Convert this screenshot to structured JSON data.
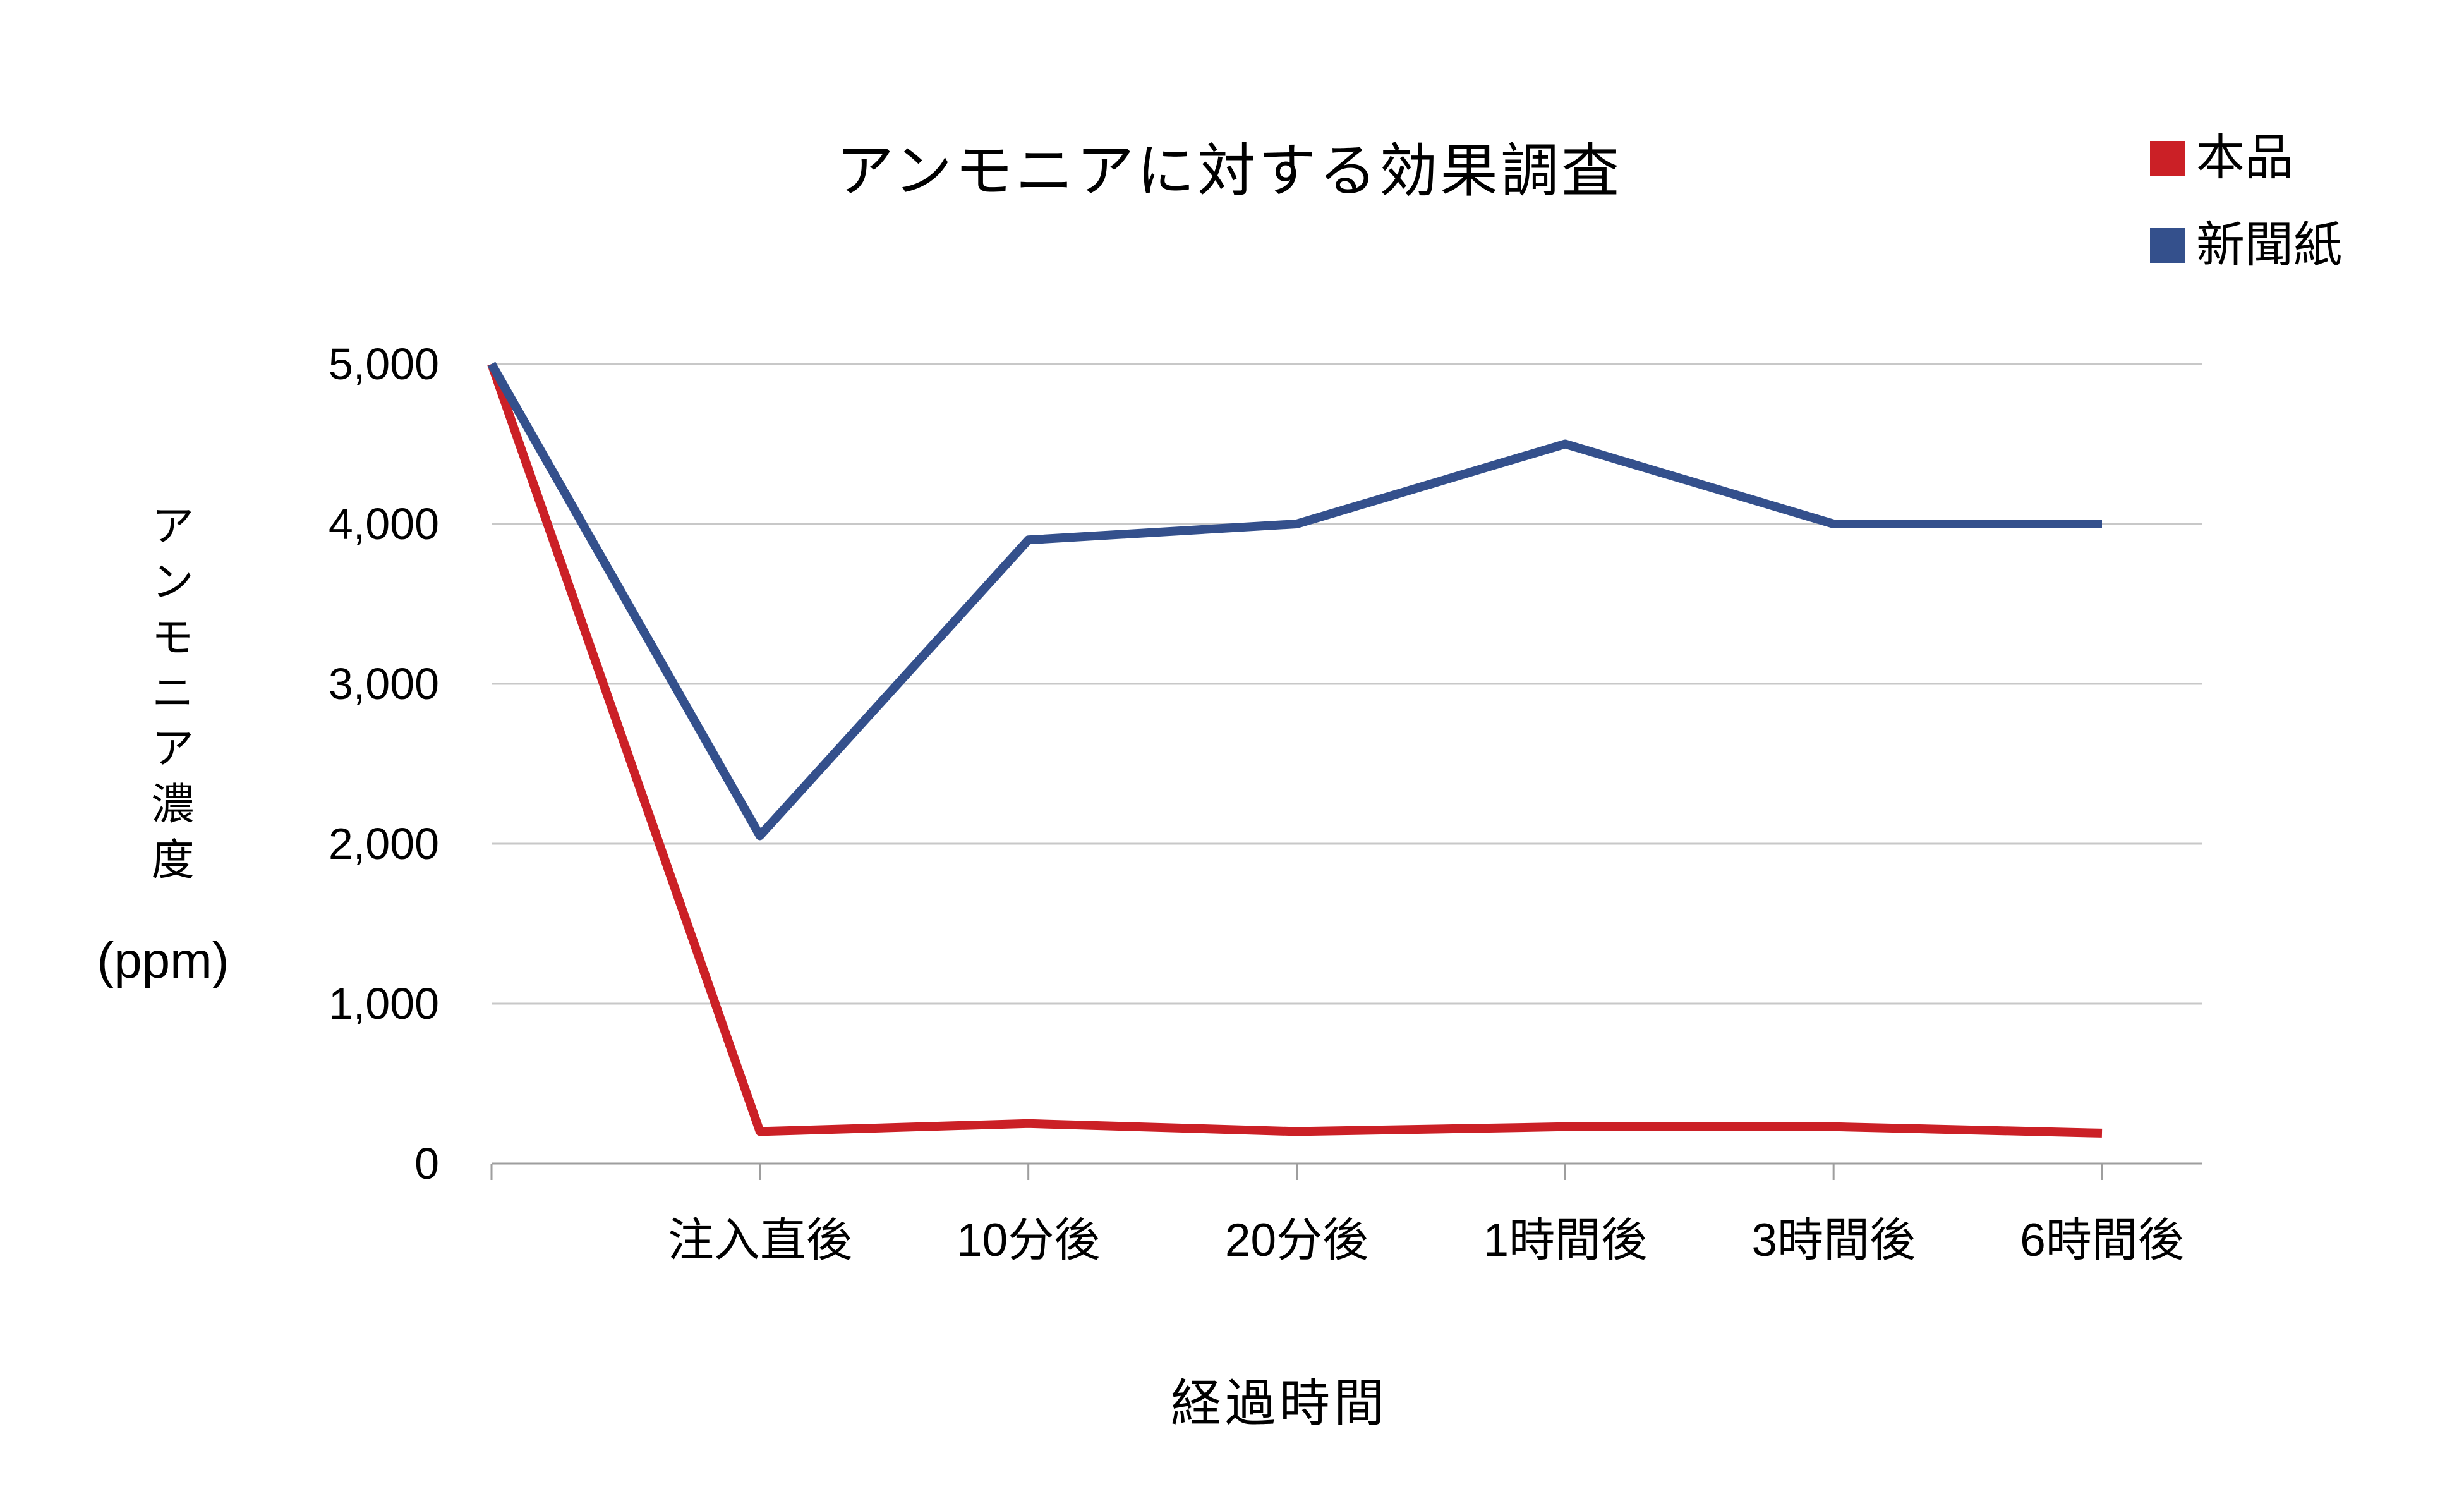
{
  "page": {
    "background": "#ffffff",
    "text_color": "#000000"
  },
  "chart_data": {
    "type": "line",
    "title": "アンモニアに対する効果調査",
    "categories": [
      "",
      "注入直後",
      "10分後",
      "20分後",
      "1時間後",
      "3時間後",
      "6時間後"
    ],
    "series": [
      {
        "name": "本品",
        "color": "#CB2026",
        "values": [
          5000,
          200,
          250,
          200,
          230,
          230,
          190
        ]
      },
      {
        "name": "新聞紙",
        "color": "#34508C",
        "values": [
          5000,
          2050,
          3900,
          4000,
          4500,
          4000,
          4000
        ]
      }
    ],
    "xlabel": "経過時間",
    "ylabel": "アンモニア濃度",
    "ylabel_unit": "(ppm)",
    "ylim": [
      0,
      5000
    ],
    "yticks": [
      {
        "value": 0,
        "label": "0"
      },
      {
        "value": 1000,
        "label": "1,000"
      },
      {
        "value": 2000,
        "label": "2,000"
      },
      {
        "value": 3000,
        "label": "3,000"
      },
      {
        "value": 4000,
        "label": "4,000"
      },
      {
        "value": 5000,
        "label": "5,000"
      }
    ],
    "grid": "horizontal",
    "legend_position": "top-right",
    "grid_color": "#C8C8C8",
    "axis_color": "#9E9E9E",
    "line_width": 14
  }
}
